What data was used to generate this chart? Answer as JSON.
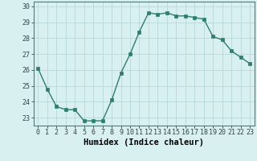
{
  "title": "",
  "xlabel": "Humidex (Indice chaleur)",
  "ylabel": "",
  "x": [
    0,
    1,
    2,
    3,
    4,
    5,
    6,
    7,
    8,
    9,
    10,
    11,
    12,
    13,
    14,
    15,
    16,
    17,
    18,
    19,
    20,
    21,
    22,
    23
  ],
  "y": [
    26.1,
    24.8,
    23.7,
    23.5,
    23.5,
    22.8,
    22.8,
    22.8,
    24.1,
    25.8,
    27.0,
    28.4,
    29.6,
    29.5,
    29.6,
    29.4,
    29.4,
    29.3,
    29.2,
    28.1,
    27.9,
    27.2,
    26.8,
    26.4
  ],
  "line_color": "#2e7d6e",
  "marker": "s",
  "marker_size": 2.2,
  "line_width": 1.0,
  "bg_color": "#d9f0f0",
  "grid_color": "#b8d8d8",
  "ylim": [
    22.5,
    30.3
  ],
  "yticks": [
    23,
    24,
    25,
    26,
    27,
    28,
    29,
    30
  ],
  "xticks": [
    0,
    1,
    2,
    3,
    4,
    5,
    6,
    7,
    8,
    9,
    10,
    11,
    12,
    13,
    14,
    15,
    16,
    17,
    18,
    19,
    20,
    21,
    22,
    23
  ],
  "tick_fontsize": 6.0,
  "xlabel_fontsize": 7.5
}
